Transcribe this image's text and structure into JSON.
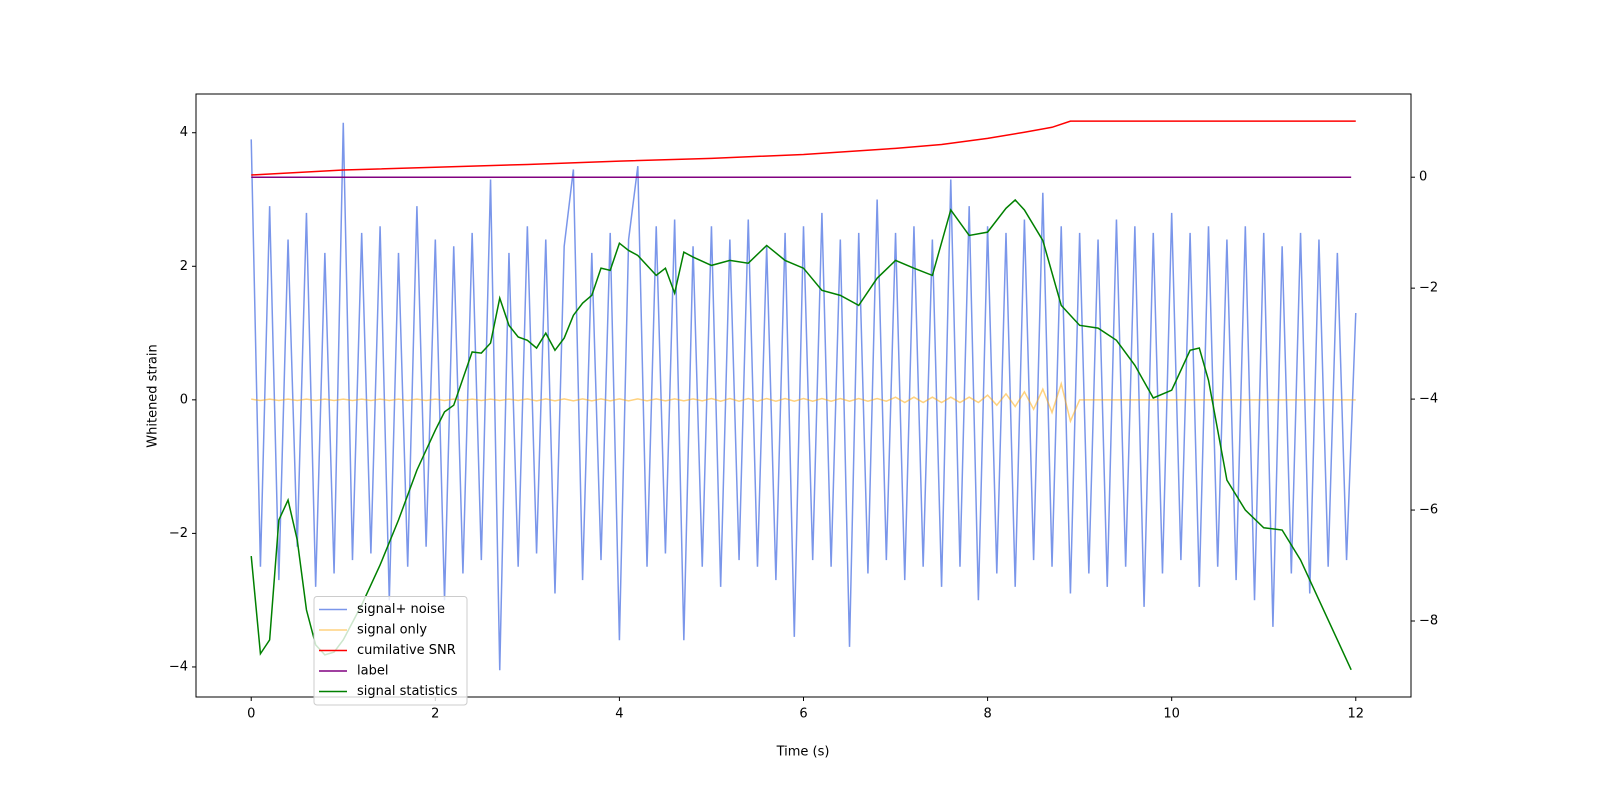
{
  "chart_data": {
    "type": "line",
    "xlabel": "Time (s)",
    "ylabel": "Whitened strain",
    "xlim": [
      -0.6,
      12.6
    ],
    "ylim": [
      -4.45,
      4.58
    ],
    "y2lim": [
      -9.37,
      1.5
    ],
    "xticks": [
      0,
      2,
      4,
      6,
      8,
      10,
      12
    ],
    "yticks": [
      {
        "value": -4,
        "label": "−4"
      },
      {
        "value": -2,
        "label": "−2"
      },
      0,
      2,
      4
    ],
    "y2ticks": [
      {
        "value": -8,
        "label": "−8"
      },
      {
        "value": -6,
        "label": "−6"
      },
      {
        "value": -4,
        "label": "−4"
      },
      {
        "value": -2,
        "label": "−2"
      },
      0
    ],
    "legend": "lower left",
    "x": [
      0,
      0.1,
      0.2,
      0.3,
      0.4,
      0.5,
      0.6,
      0.7,
      0.8,
      0.9,
      1,
      1.1,
      1.2,
      1.3,
      1.4,
      1.5,
      1.6,
      1.7,
      1.8,
      1.9,
      2,
      2.1,
      2.2,
      2.3,
      2.4,
      2.5,
      2.6,
      2.7,
      2.8,
      2.9,
      3,
      3.1,
      3.2,
      3.3,
      3.4,
      3.5,
      3.6,
      3.7,
      3.8,
      3.9,
      4,
      4.1,
      4.2,
      4.3,
      4.4,
      4.5,
      4.6,
      4.7,
      4.8,
      4.9,
      5,
      5.1,
      5.2,
      5.3,
      5.4,
      5.5,
      5.6,
      5.7,
      5.8,
      5.9,
      6,
      6.1,
      6.2,
      6.3,
      6.4,
      6.5,
      6.6,
      6.7,
      6.8,
      6.9,
      7,
      7.1,
      7.2,
      7.3,
      7.4,
      7.5,
      7.6,
      7.7,
      7.8,
      7.9,
      8,
      8.1,
      8.2,
      8.3,
      8.4,
      8.5,
      8.6,
      8.7,
      8.8,
      8.9,
      9,
      9.1,
      9.2,
      9.3,
      9.4,
      9.5,
      9.6,
      9.7,
      9.8,
      9.9,
      10,
      10.1,
      10.2,
      10.3,
      10.4,
      10.5,
      10.6,
      10.7,
      10.8,
      10.9,
      11,
      11.1,
      11.2,
      11.3,
      11.4,
      11.5,
      11.6,
      11.7,
      11.8,
      11.9,
      12
    ],
    "series": [
      {
        "name": "signal+ noise",
        "color": "royalblue",
        "opacity": 0.7,
        "values": [
          3.9,
          -2.5,
          2.9,
          -2.7,
          2.4,
          -2.2,
          2.8,
          -2.8,
          2.2,
          -2.6,
          4.15,
          -2.4,
          2.5,
          -2.3,
          2.6,
          -3.0,
          2.2,
          -2.5,
          2.9,
          -2.2,
          2.4,
          -3.0,
          2.3,
          -2.6,
          2.5,
          -2.4,
          3.3,
          -4.05,
          2.2,
          -2.5,
          2.6,
          -2.3,
          2.4,
          -2.9,
          2.3,
          3.45,
          -2.7,
          2.2,
          -2.4,
          2.5,
          -3.6,
          2.4,
          3.5,
          -2.5,
          2.6,
          -2.3,
          2.7,
          -3.6,
          2.3,
          -2.5,
          2.6,
          -2.8,
          2.4,
          -2.4,
          2.7,
          -2.5,
          2.3,
          -2.7,
          2.5,
          -3.55,
          2.6,
          -2.4,
          2.8,
          -2.5,
          2.4,
          -3.7,
          2.5,
          -2.6,
          3.0,
          -2.4,
          2.5,
          -2.7,
          2.6,
          -2.5,
          2.4,
          -2.8,
          3.3,
          -2.5,
          2.9,
          -3.0,
          2.6,
          -2.6,
          2.5,
          -2.8,
          2.7,
          -2.4,
          3.1,
          -2.5,
          2.6,
          -2.9,
          2.5,
          -2.6,
          2.4,
          -2.8,
          2.7,
          -2.5,
          2.6,
          -3.1,
          2.5,
          -2.6,
          2.8,
          -2.4,
          2.5,
          -2.8,
          2.6,
          -2.5,
          2.4,
          -2.7,
          2.6,
          -3.0,
          2.5,
          -3.4,
          2.3,
          -2.6,
          2.5,
          -2.9,
          2.4,
          -2.5,
          2.2,
          -2.4,
          1.3
        ]
      },
      {
        "name": "signal only",
        "color": "orange",
        "opacity": 0.5,
        "values": [
          0.01,
          -0.01,
          0.01,
          -0.01,
          0.01,
          -0.01,
          0.01,
          -0.01,
          0.01,
          -0.01,
          0.01,
          -0.01,
          0.01,
          -0.01,
          0.01,
          -0.01,
          0.01,
          -0.01,
          0.01,
          -0.01,
          0.01,
          -0.01,
          0.01,
          -0.01,
          0.01,
          -0.01,
          0.01,
          -0.01,
          0.01,
          -0.01,
          0.015,
          -0.015,
          0.015,
          -0.015,
          0.015,
          -0.015,
          0.015,
          -0.015,
          0.015,
          -0.015,
          0.015,
          -0.015,
          0.015,
          -0.015,
          0.015,
          -0.015,
          0.015,
          -0.015,
          0.015,
          -0.015,
          0.02,
          -0.02,
          0.02,
          -0.02,
          0.02,
          -0.02,
          0.02,
          -0.02,
          0.02,
          -0.02,
          0.02,
          -0.02,
          0.02,
          -0.02,
          0.02,
          -0.02,
          0.02,
          -0.02,
          0.02,
          -0.02,
          0.04,
          -0.04,
          0.04,
          -0.04,
          0.04,
          -0.04,
          0.04,
          -0.04,
          0.04,
          -0.04,
          0.07,
          -0.08,
          0.09,
          -0.1,
          0.12,
          -0.14,
          0.16,
          -0.19,
          0.24,
          -0.32,
          0,
          0,
          0,
          0,
          0,
          0,
          0,
          0,
          0,
          0,
          0,
          0,
          0,
          0,
          0,
          0,
          0,
          0,
          0,
          0,
          0,
          0,
          0,
          0,
          0,
          0,
          0,
          0,
          0,
          0,
          0
        ]
      },
      {
        "name": "cumilative SNR",
        "color": "red",
        "axis": "y2",
        "x": [
          0,
          1,
          2,
          3,
          4,
          5,
          6,
          7,
          7.5,
          8,
          8.4,
          8.7,
          8.9,
          9,
          10,
          11,
          12
        ],
        "values": [
          0.04,
          0.13,
          0.18,
          0.23,
          0.29,
          0.34,
          0.41,
          0.52,
          0.59,
          0.7,
          0.81,
          0.9,
          1.01,
          1.01,
          1.01,
          1.01,
          1.01
        ]
      },
      {
        "name": "label",
        "color": "purple",
        "axis": "y2",
        "x": [
          0,
          11.95
        ],
        "values": [
          0,
          0
        ]
      },
      {
        "name": "signal statistics",
        "color": "green",
        "axis": "y2",
        "x": [
          0,
          0.1,
          0.2,
          0.3,
          0.4,
          0.5,
          0.6,
          0.7,
          0.8,
          0.9,
          1.0,
          1.2,
          1.4,
          1.6,
          1.8,
          2.0,
          2.1,
          2.2,
          2.4,
          2.5,
          2.6,
          2.7,
          2.8,
          2.9,
          3.0,
          3.1,
          3.2,
          3.3,
          3.4,
          3.5,
          3.6,
          3.7,
          3.8,
          3.9,
          4.0,
          4.1,
          4.2,
          4.4,
          4.5,
          4.6,
          4.7,
          4.8,
          5.0,
          5.2,
          5.4,
          5.6,
          5.8,
          6.0,
          6.2,
          6.4,
          6.6,
          6.8,
          7.0,
          7.2,
          7.4,
          7.6,
          7.8,
          8.0,
          8.2,
          8.3,
          8.4,
          8.6,
          8.8,
          8.9,
          9.0,
          9.2,
          9.4,
          9.6,
          9.8,
          10.0,
          10.2,
          10.3,
          10.4,
          10.6,
          10.8,
          11.0,
          11.2,
          11.4,
          11.6,
          11.8,
          11.95
        ],
        "values": [
          -6.83,
          -8.59,
          -8.34,
          -6.18,
          -5.82,
          -6.54,
          -7.8,
          -8.43,
          -8.61,
          -8.56,
          -8.34,
          -7.71,
          -6.99,
          -6.18,
          -5.28,
          -4.56,
          -4.23,
          -4.11,
          -3.15,
          -3.17,
          -2.99,
          -2.18,
          -2.67,
          -2.88,
          -2.94,
          -3.08,
          -2.81,
          -3.12,
          -2.9,
          -2.49,
          -2.27,
          -2.13,
          -1.64,
          -1.68,
          -1.19,
          -1.32,
          -1.41,
          -1.77,
          -1.64,
          -2.09,
          -1.35,
          -1.44,
          -1.59,
          -1.5,
          -1.55,
          -1.23,
          -1.5,
          -1.64,
          -2.04,
          -2.13,
          -2.31,
          -1.82,
          -1.5,
          -1.64,
          -1.77,
          -0.59,
          -1.05,
          -0.99,
          -0.56,
          -0.41,
          -0.59,
          -1.14,
          -2.31,
          -2.49,
          -2.67,
          -2.72,
          -2.94,
          -3.39,
          -3.98,
          -3.84,
          -3.12,
          -3.08,
          -3.66,
          -5.46,
          -6,
          -6.32,
          -6.36,
          -6.9,
          -7.62,
          -8.34,
          -8.88
        ]
      }
    ]
  }
}
